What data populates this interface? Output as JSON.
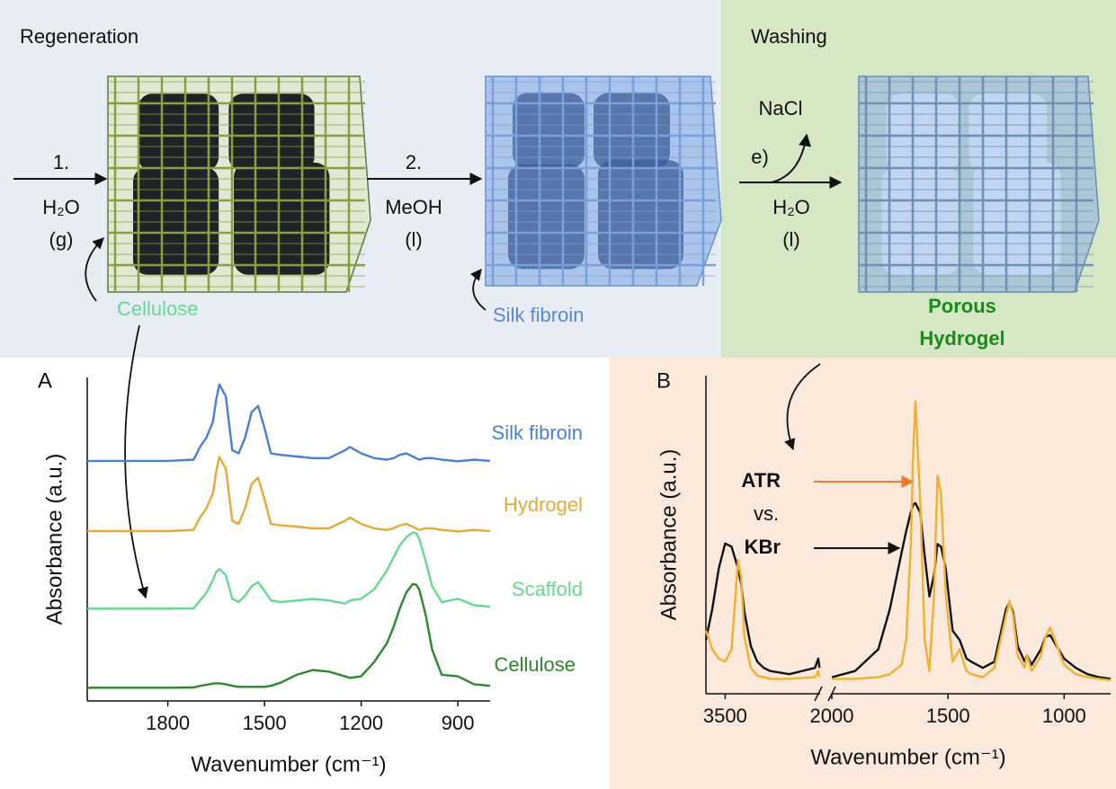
{
  "diagram": {
    "sections": [
      "Regeneration",
      "Washing"
    ],
    "steps": [
      {
        "number": "1.",
        "reagent": "H₂O",
        "phase": "(g)"
      },
      {
        "number": "2.",
        "reagent": "MeOH",
        "phase": "(l)"
      },
      {
        "byproduct": "NaCl",
        "label": "e)",
        "reagent": "H₂O",
        "phase": "(l)"
      }
    ],
    "materials": {
      "cellulose": "Cellulose",
      "silk": "Silk fibroin",
      "hydrogel": [
        "Porous",
        "Hydrogel"
      ]
    }
  },
  "chart_data": [
    {
      "type": "line",
      "panel": "A",
      "xlabel": "Wavenumber (cm⁻¹)",
      "ylabel": "Absorbance (a.u.)",
      "x": [
        2050,
        1900,
        1800,
        1720,
        1700,
        1680,
        1660,
        1650,
        1640,
        1620,
        1600,
        1580,
        1560,
        1540,
        1520,
        1500,
        1480,
        1450,
        1400,
        1350,
        1300,
        1250,
        1235,
        1200,
        1160,
        1120,
        1100,
        1080,
        1060,
        1040,
        1030,
        1020,
        1000,
        980,
        950,
        900,
        850,
        800
      ],
      "xlim": [
        2050,
        800
      ],
      "xticks": [
        1800,
        1500,
        1200,
        900
      ],
      "ylim": [
        0,
        10
      ],
      "series": [
        {
          "name": "Silk fibroin",
          "color": "#4a7fd6",
          "values": [
            7.36,
            7.36,
            7.36,
            7.4,
            7.8,
            8.1,
            8.6,
            9.3,
            9.78,
            9.4,
            7.7,
            7.6,
            8.1,
            8.9,
            9.1,
            8.4,
            7.6,
            7.55,
            7.5,
            7.45,
            7.45,
            7.7,
            7.8,
            7.6,
            7.45,
            7.4,
            7.45,
            7.55,
            7.6,
            7.5,
            7.45,
            7.4,
            7.45,
            7.45,
            7.4,
            7.35,
            7.4,
            7.36
          ]
        },
        {
          "name": "Hydrogel",
          "color": "#e8a838",
          "values": [
            5.14,
            5.14,
            5.14,
            5.18,
            5.57,
            5.86,
            6.34,
            7.02,
            7.49,
            7.12,
            5.47,
            5.37,
            5.86,
            6.63,
            6.83,
            6.15,
            5.37,
            5.32,
            5.28,
            5.23,
            5.23,
            5.47,
            5.57,
            5.37,
            5.23,
            5.18,
            5.23,
            5.32,
            5.37,
            5.28,
            5.23,
            5.18,
            5.23,
            5.23,
            5.18,
            5.13,
            5.18,
            5.14
          ]
        },
        {
          "name": "Scaffold",
          "color": "#66d98f",
          "values": [
            2.69,
            2.69,
            2.69,
            2.7,
            2.95,
            3.2,
            3.6,
            3.85,
            3.94,
            3.75,
            3.0,
            2.9,
            3.1,
            3.4,
            3.53,
            3.25,
            2.95,
            2.9,
            2.95,
            3.0,
            2.95,
            2.85,
            2.95,
            3.0,
            3.3,
            3.9,
            4.3,
            4.7,
            4.95,
            5.1,
            5.08,
            4.9,
            4.2,
            3.4,
            2.9,
            3.0,
            2.8,
            2.75
          ]
        },
        {
          "name": "Cellulose",
          "color": "#2a8a2a",
          "values": [
            0.19,
            0.19,
            0.19,
            0.2,
            0.25,
            0.28,
            0.32,
            0.33,
            0.33,
            0.3,
            0.25,
            0.22,
            0.22,
            0.22,
            0.22,
            0.22,
            0.25,
            0.35,
            0.6,
            0.75,
            0.7,
            0.55,
            0.5,
            0.55,
            1.0,
            1.6,
            2.1,
            2.7,
            3.2,
            3.47,
            3.45,
            3.3,
            2.5,
            1.4,
            0.6,
            0.55,
            0.3,
            0.25
          ]
        }
      ]
    },
    {
      "type": "line",
      "panel": "B",
      "xlabel": "Wavenumber (cm⁻¹)",
      "ylabel": "Absorbance (a.u.)",
      "comparison_label": "vs.",
      "x": [
        3800,
        3700,
        3600,
        3500,
        3400,
        3300,
        3250,
        3200,
        3100,
        3000,
        2900,
        2800,
        2500,
        2100,
        2050,
        2030,
        2010,
        2000,
        1900,
        1800,
        1750,
        1700,
        1680,
        1660,
        1650,
        1640,
        1620,
        1600,
        1580,
        1560,
        1545,
        1530,
        1510,
        1480,
        1450,
        1420,
        1400,
        1350,
        1300,
        1250,
        1235,
        1220,
        1200,
        1170,
        1160,
        1140,
        1100,
        1080,
        1060,
        1040,
        1000,
        950,
        900,
        850,
        800
      ],
      "xlim": [
        3800,
        800
      ],
      "xbreak": [
        2020,
        2000
      ],
      "xticks": [
        3500,
        2000,
        1500,
        1000
      ],
      "ylim": [
        0,
        10
      ],
      "series": [
        {
          "name": "KBr",
          "color": "#111111",
          "values": [
            1.5,
            2.5,
            3.8,
            4.6,
            4.5,
            3.8,
            3.3,
            2.4,
            1.3,
            0.8,
            0.6,
            0.5,
            0.4,
            0.6,
            0.9,
            0.6,
            null,
            0.3,
            0.5,
            1.2,
            2.5,
            4.3,
            5.0,
            5.6,
            5.85,
            5.9,
            5.6,
            4.2,
            2.9,
            3.6,
            4.58,
            4.5,
            3.8,
            1.8,
            1.5,
            0.9,
            0.8,
            0.6,
            0.8,
            2.5,
            2.7,
            2.4,
            1.3,
            0.8,
            1.0,
            0.7,
            1.2,
            1.6,
            1.65,
            1.4,
            0.9,
            0.6,
            0.4,
            0.3,
            0.25
          ]
        },
        {
          "name": "ATR",
          "color": "#f0b030",
          "values": [
            1.8,
            1.2,
            0.9,
            0.8,
            1.2,
            4.07,
            3.5,
            1.6,
            0.6,
            0.35,
            0.3,
            0.25,
            0.25,
            0.3,
            0.5,
            0.3,
            null,
            0.25,
            0.25,
            0.3,
            0.4,
            0.7,
            1.5,
            4.5,
            7.5,
            9.18,
            6.0,
            1.5,
            0.5,
            3.0,
            6.78,
            6.2,
            3.0,
            0.8,
            1.2,
            0.5,
            0.4,
            0.3,
            0.6,
            2.3,
            2.75,
            2.3,
            1.0,
            0.6,
            1.0,
            0.5,
            1.0,
            1.6,
            1.9,
            1.5,
            0.7,
            0.4,
            0.3,
            0.25,
            0.2
          ]
        }
      ]
    }
  ]
}
